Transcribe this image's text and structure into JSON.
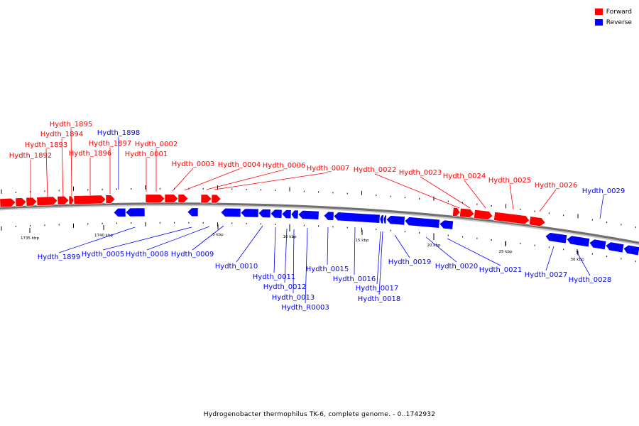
{
  "colors": {
    "forward": "#ff0000",
    "reverse": "#0000ff",
    "backbone": "#808080",
    "tick": "#000000"
  },
  "legend": [
    {
      "label": "Forward",
      "color": "#ff0000"
    },
    {
      "label": "Reverse",
      "color": "#0000ff"
    }
  ],
  "caption": "Hydrogenobacter thermophilus TK-6, complete genome. - 0..1742932",
  "scale_labels": [
    "1735 kbp",
    "1740 kbp",
    "5 kbp",
    "10 kbp",
    "15 kbp",
    "20 kbp",
    "25 kbp",
    "30 kbp"
  ],
  "genes_forward": [
    "Hydth_1892",
    "Hydth_1893",
    "Hydth_1894",
    "Hydth_1895",
    "Hydth_1896",
    "Hydth_1897",
    "Hydth_0001",
    "Hydth_0002",
    "Hydth_0003",
    "Hydth_0004",
    "Hydth_0006",
    "Hydth_0007",
    "Hydth_0022",
    "Hydth_0023",
    "Hydth_0024",
    "Hydth_0025",
    "Hydth_0026"
  ],
  "genes_reverse": [
    "Hydth_1898",
    "Hydth_1899",
    "Hydth_0005",
    "Hydth_0008",
    "Hydth_0009",
    "Hydth_0010",
    "Hydth_0011",
    "Hydth_0012",
    "Hydth_0013",
    "Hydth_R0003",
    "Hydth_0015",
    "Hydth_0016",
    "Hydth_0017",
    "Hydth_0018",
    "Hydth_0019",
    "Hydth_0020",
    "Hydth_0021",
    "Hydth_0027",
    "Hydth_0028",
    "Hydth_0029"
  ]
}
